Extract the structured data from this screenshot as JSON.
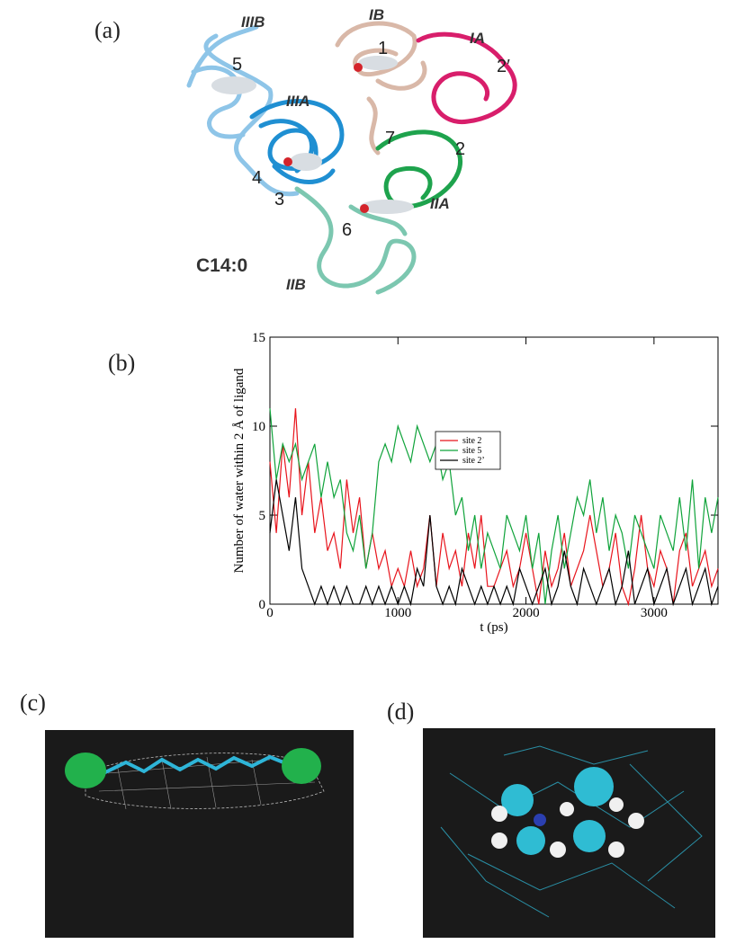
{
  "panel_labels": [
    "(a)",
    "(b)",
    "(c)",
    "(d)"
  ],
  "protein_labels": {
    "IIIB": "IIIB",
    "IB": "IB",
    "IA": "IA",
    "s5": "5",
    "s1": "1",
    "s2p": "2′",
    "IIIA": "IIIA",
    "s7": "7",
    "s2": "2",
    "s4": "4",
    "s3": "3",
    "s6": "6",
    "IIA": "IIA",
    "ligand": "C14:0",
    "IIB": "IIB"
  },
  "chart_data": {
    "type": "line",
    "y_label": "Number of water within 2 Å of ligand",
    "x_label": "t (ps)",
    "xlim": [
      0,
      3500
    ],
    "xticks": [
      0,
      1000,
      2000,
      3000
    ],
    "ylim": [
      0,
      15
    ],
    "yticks": [
      0,
      5,
      10,
      15
    ],
    "legend": "top-right",
    "x": [
      0,
      50,
      100,
      150,
      200,
      250,
      300,
      350,
      400,
      450,
      500,
      550,
      600,
      650,
      700,
      750,
      800,
      850,
      900,
      950,
      1000,
      1050,
      1100,
      1150,
      1200,
      1250,
      1300,
      1350,
      1400,
      1450,
      1500,
      1550,
      1600,
      1650,
      1700,
      1750,
      1800,
      1850,
      1900,
      1950,
      2000,
      2050,
      2100,
      2150,
      2200,
      2250,
      2300,
      2350,
      2400,
      2450,
      2500,
      2550,
      2600,
      2650,
      2700,
      2750,
      2800,
      2850,
      2900,
      2950,
      3000,
      3050,
      3100,
      3150,
      3200,
      3250,
      3300,
      3350,
      3400,
      3450,
      3500
    ],
    "series": [
      {
        "name": "site 2",
        "color": "#e8141c",
        "values": [
          8,
          4,
          9,
          6,
          11,
          5,
          8,
          4,
          6,
          3,
          4,
          2,
          7,
          4,
          6,
          2,
          4,
          2,
          3,
          1,
          2,
          1,
          3,
          1,
          2,
          5,
          1,
          4,
          2,
          3,
          1,
          4,
          2,
          5,
          1,
          1,
          2,
          3,
          1,
          2,
          4,
          2,
          0,
          3,
          1,
          2,
          4,
          1,
          2,
          3,
          5,
          3,
          1,
          2,
          4,
          1,
          0,
          2,
          5,
          2,
          1,
          3,
          2,
          0,
          3,
          4,
          1,
          2,
          3,
          1,
          2
        ]
      },
      {
        "name": "site 5",
        "color": "#0fa33a",
        "values": [
          11,
          7,
          9,
          8,
          9,
          7,
          8,
          9,
          6,
          8,
          6,
          7,
          4,
          3,
          5,
          2,
          4,
          8,
          9,
          8,
          10,
          9,
          8,
          10,
          9,
          8,
          9,
          7,
          8,
          5,
          6,
          3,
          5,
          2,
          4,
          3,
          2,
          5,
          4,
          3,
          5,
          2,
          4,
          0,
          3,
          5,
          2,
          4,
          6,
          5,
          7,
          4,
          6,
          3,
          5,
          4,
          2,
          5,
          4,
          3,
          2,
          5,
          4,
          3,
          6,
          3,
          7,
          2,
          6,
          4,
          6
        ]
      },
      {
        "name": "site 2’",
        "color": "#000000",
        "values": [
          4,
          7,
          5,
          3,
          6,
          2,
          1,
          0,
          1,
          0,
          1,
          0,
          1,
          0,
          0,
          1,
          0,
          1,
          0,
          1,
          0,
          1,
          0,
          2,
          1,
          5,
          1,
          0,
          1,
          0,
          2,
          1,
          0,
          1,
          0,
          1,
          0,
          1,
          0,
          2,
          1,
          0,
          1,
          2,
          0,
          1,
          3,
          1,
          0,
          2,
          1,
          0,
          1,
          2,
          0,
          1,
          3,
          0,
          1,
          2,
          0,
          1,
          2,
          0,
          1,
          2,
          0,
          1,
          2,
          0,
          1
        ]
      }
    ]
  }
}
